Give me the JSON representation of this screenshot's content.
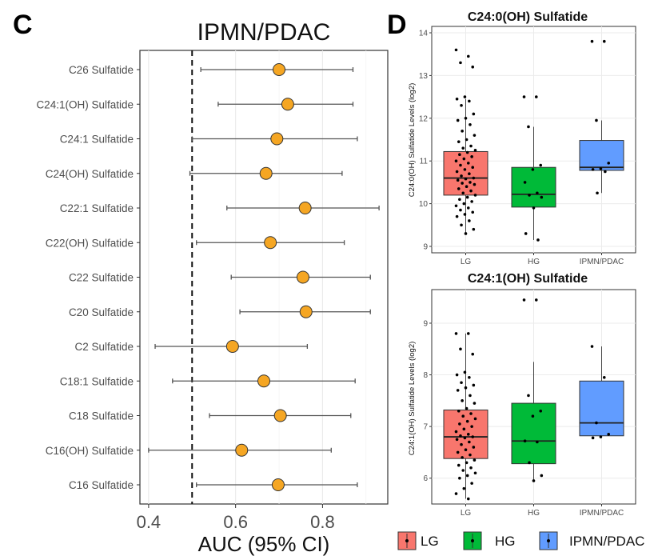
{
  "chart_data": [
    {
      "panel": "C",
      "type": "forest",
      "title": "IPMN/PDAC",
      "xlabel": "AUC (95% CI)",
      "xlim": [
        0.38,
        0.95
      ],
      "xticks": [
        "0.4",
        "0.6",
        "0.8"
      ],
      "xtick_values": [
        0.4,
        0.6,
        0.8
      ],
      "reference_line": 0.5,
      "point_color": "#f5a623",
      "rows": [
        {
          "label": "C26 Sulfatide",
          "auc": 0.7,
          "lo": 0.52,
          "hi": 0.87
        },
        {
          "label": "C24:1(OH) Sulfatide",
          "auc": 0.72,
          "lo": 0.56,
          "hi": 0.87
        },
        {
          "label": "C24:1 Sulfatide",
          "auc": 0.695,
          "lo": 0.5,
          "hi": 0.88
        },
        {
          "label": "C24(OH) Sulfatide",
          "auc": 0.67,
          "lo": 0.495,
          "hi": 0.845
        },
        {
          "label": "C22:1 Sulfatide",
          "auc": 0.76,
          "lo": 0.58,
          "hi": 0.93
        },
        {
          "label": "C22(OH) Sulfatide",
          "auc": 0.68,
          "lo": 0.51,
          "hi": 0.85
        },
        {
          "label": "C22 Sulfatide",
          "auc": 0.755,
          "lo": 0.59,
          "hi": 0.91
        },
        {
          "label": "C20 Sulfatide",
          "auc": 0.762,
          "lo": 0.61,
          "hi": 0.91
        },
        {
          "label": "C2 Sulfatide",
          "auc": 0.593,
          "lo": 0.415,
          "hi": 0.765
        },
        {
          "label": "C18:1 Sulfatide",
          "auc": 0.665,
          "lo": 0.455,
          "hi": 0.875
        },
        {
          "label": "C18 Sulfatide",
          "auc": 0.703,
          "lo": 0.54,
          "hi": 0.865
        },
        {
          "label": "C16(OH) Sulfatide",
          "auc": 0.614,
          "lo": 0.4,
          "hi": 0.82
        },
        {
          "label": "C16 Sulfatide",
          "auc": 0.698,
          "lo": 0.51,
          "hi": 0.88
        }
      ]
    },
    {
      "panel": "D",
      "type": "box",
      "title": "C24:0(OH) Sulfatide",
      "ylabel": "C24:0(OH) Sulfatide Levels (log2)",
      "ylim": [
        8.85,
        14.15
      ],
      "yticks": [
        9,
        10,
        11,
        12,
        13,
        14
      ],
      "groups": [
        {
          "name": "LG",
          "q1": 10.2,
          "median": 10.6,
          "q3": 11.22,
          "wlo": 9.3,
          "whi": 12.45,
          "points": [
            13.6,
            13.45,
            13.3,
            13.2,
            12.5,
            12.45,
            12.4,
            12.3,
            12.1,
            12.0,
            11.95,
            11.85,
            11.7,
            11.6,
            11.5,
            11.45,
            11.35,
            11.3,
            11.25,
            11.2,
            11.15,
            11.1,
            11.05,
            11.0,
            10.95,
            10.9,
            10.85,
            10.8,
            10.75,
            10.7,
            10.65,
            10.6,
            10.58,
            10.55,
            10.5,
            10.48,
            10.45,
            10.4,
            10.35,
            10.3,
            10.25,
            10.2,
            10.15,
            10.1,
            10.05,
            10.0,
            9.95,
            9.9,
            9.85,
            9.8,
            9.75,
            9.7,
            9.6,
            9.5,
            9.4,
            9.3
          ]
        },
        {
          "name": "HG",
          "q1": 9.92,
          "median": 10.22,
          "q3": 10.85,
          "wlo": 9.15,
          "whi": 11.8,
          "points": [
            12.5,
            12.5,
            11.8,
            10.9,
            10.8,
            10.5,
            10.25,
            10.2,
            10.15,
            9.9,
            9.3,
            9.15
          ]
        },
        {
          "name": "IPMN/PDAC",
          "q1": 10.78,
          "median": 10.85,
          "q3": 11.48,
          "wlo": 10.25,
          "whi": 11.95,
          "points": [
            13.8,
            13.8,
            11.95,
            10.95,
            10.82,
            10.8,
            10.75,
            10.25
          ]
        }
      ]
    },
    {
      "panel": "D",
      "type": "box",
      "title": "C24:1(OH) Sulfatide",
      "ylabel": "C24:1(OH) Sulfatide Levels (log2)",
      "ylim": [
        5.5,
        9.65
      ],
      "yticks": [
        6,
        7,
        8,
        9
      ],
      "groups": [
        {
          "name": "LG",
          "q1": 6.38,
          "median": 6.8,
          "q3": 7.32,
          "wlo": 5.6,
          "whi": 8.8,
          "points": [
            8.8,
            8.8,
            8.5,
            8.4,
            8.05,
            8.0,
            7.95,
            7.85,
            7.8,
            7.75,
            7.7,
            7.6,
            7.5,
            7.45,
            7.35,
            7.3,
            7.25,
            7.2,
            7.15,
            7.1,
            7.05,
            7.0,
            6.95,
            6.9,
            6.85,
            6.82,
            6.8,
            6.78,
            6.75,
            6.7,
            6.65,
            6.6,
            6.55,
            6.5,
            6.45,
            6.4,
            6.35,
            6.3,
            6.25,
            6.2,
            6.15,
            6.1,
            6.05,
            6.0,
            5.9,
            5.8,
            5.7,
            5.6
          ]
        },
        {
          "name": "HG",
          "q1": 6.28,
          "median": 6.72,
          "q3": 7.45,
          "wlo": 5.95,
          "whi": 8.25,
          "points": [
            9.45,
            9.45,
            7.6,
            7.3,
            7.2,
            6.72,
            6.7,
            6.3,
            6.05,
            5.95
          ]
        },
        {
          "name": "IPMN/PDAC",
          "q1": 6.82,
          "median": 7.07,
          "q3": 7.88,
          "wlo": 6.78,
          "whi": 8.55,
          "points": [
            8.55,
            7.95,
            7.07,
            6.85,
            6.8,
            6.78
          ]
        }
      ]
    }
  ],
  "legend": [
    {
      "label": "LG",
      "color": "#f8766d"
    },
    {
      "label": "HG",
      "color": "#00ba38"
    },
    {
      "label": "IPMN/PDAC",
      "color": "#619cff"
    }
  ]
}
